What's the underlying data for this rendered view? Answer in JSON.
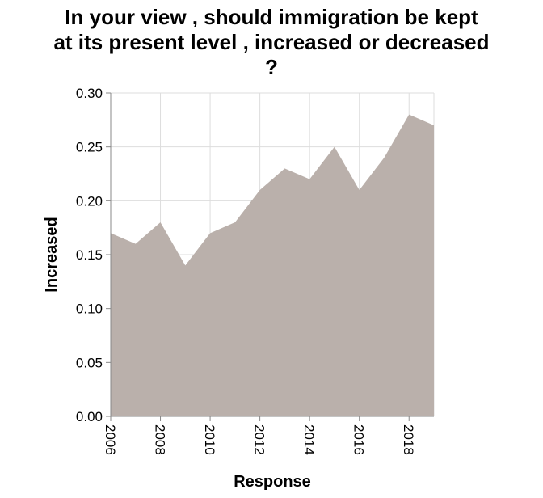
{
  "chart_data": {
    "type": "area",
    "title_lines": [
      "In your view , should immigration be kept",
      "at its present level , increased or decreased",
      "?"
    ],
    "xlabel": "Response",
    "ylabel": "Increased",
    "x": [
      2006,
      2007,
      2008,
      2009,
      2010,
      2011,
      2012,
      2013,
      2014,
      2015,
      2016,
      2017,
      2018,
      2019
    ],
    "series": [
      {
        "values": [
          0.17,
          0.16,
          0.18,
          0.14,
          0.17,
          0.18,
          0.21,
          0.23,
          0.22,
          0.25,
          0.21,
          0.24,
          0.28,
          0.27
        ]
      }
    ],
    "xlim": [
      2006,
      2019
    ],
    "ylim": [
      0,
      0.3
    ],
    "x_ticks": [
      2006,
      2008,
      2010,
      2012,
      2014,
      2016,
      2018
    ],
    "x_tick_labels": [
      "2006",
      "2008",
      "2010",
      "2012",
      "2014",
      "2016",
      "2018"
    ],
    "y_ticks": [
      0,
      0.05,
      0.1,
      0.15,
      0.2,
      0.25,
      0.3
    ],
    "y_tick_labels": [
      "0.00",
      "0.05",
      "0.10",
      "0.15",
      "0.20",
      "0.25",
      "0.30"
    ],
    "grid": true,
    "fill_color": "#bab0ab",
    "grid_color": "#dddddd",
    "axis_color": "#888888"
  }
}
